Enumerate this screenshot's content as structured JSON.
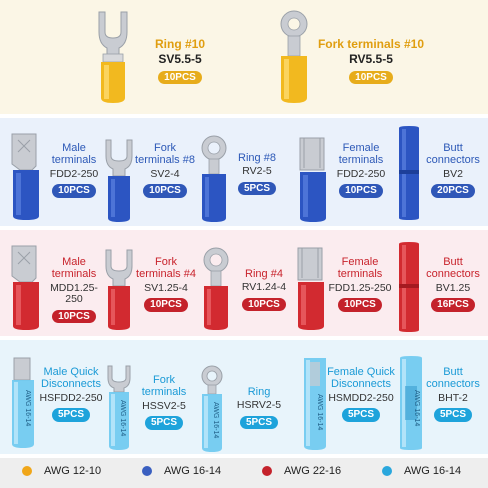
{
  "top": {
    "items": [
      {
        "name": "Ring #10",
        "code": "SV5.5-5",
        "qty": "10PCS"
      },
      {
        "name": "Fork terminals #10",
        "code": "RV5.5-5",
        "qty": "10PCS"
      }
    ]
  },
  "blue_row": {
    "items": [
      {
        "name": "Male terminals",
        "code": "FDD2-250",
        "qty": "10PCS"
      },
      {
        "name": "Fork terminals #8",
        "code": "SV2-4",
        "qty": "10PCS"
      },
      {
        "name": "Ring #8",
        "code": "RV2-5",
        "qty": "5PCS"
      },
      {
        "name": "Female terminals",
        "code": "FDD2-250",
        "qty": "10PCS"
      },
      {
        "name": "Butt connectors",
        "code": "BV2",
        "qty": "20PCS"
      }
    ]
  },
  "red_row": {
    "items": [
      {
        "name": "Male terminals",
        "code": "MDD1.25-250",
        "qty": "10PCS"
      },
      {
        "name": "Fork terminals #4",
        "code": "SV1.25-4",
        "qty": "10PCS"
      },
      {
        "name": "Ring #4",
        "code": "RV1.24-4",
        "qty": "10PCS"
      },
      {
        "name": "Female terminals",
        "code": "FDD1.25-250",
        "qty": "10PCS"
      },
      {
        "name": "Butt connectors",
        "code": "BV1.25",
        "qty": "16PCS"
      }
    ]
  },
  "cyan_row": {
    "items": [
      {
        "name": "Male Quick Disconnects",
        "code": "HSFDD2-250",
        "qty": "5PCS"
      },
      {
        "name": "Fork terminals",
        "code": "HSSV2-5",
        "qty": "5PCS"
      },
      {
        "name": "Ring",
        "code": "HSRV2-5",
        "qty": "5PCS"
      },
      {
        "name": "Female Quick Disconnects",
        "code": "HSMDD2-250",
        "qty": "5PCS"
      },
      {
        "name": "Butt connectors",
        "code": "BHT-2",
        "qty": "5PCS"
      }
    ],
    "sleeve_print": "AWG 16-14"
  },
  "legend": [
    {
      "label": "AWG 12-10",
      "color": "#f0a619"
    },
    {
      "label": "AWG 16-14",
      "color": "#3a5fc0"
    },
    {
      "label": "AWG 22-16",
      "color": "#c4222b"
    },
    {
      "label": "AWG 16-14",
      "color": "#2aa7dd"
    }
  ],
  "colors": {
    "yellow": "#f2b91f",
    "blue": "#2c55c2",
    "red": "#d22a30",
    "cyan": "#6cc9ef",
    "metal": "#c9ccd2"
  },
  "icons": [
    "fork-terminal",
    "ring-terminal",
    "male-spade-terminal",
    "female-spade-terminal",
    "butt-connector",
    "heat-shrink-terminal"
  ]
}
